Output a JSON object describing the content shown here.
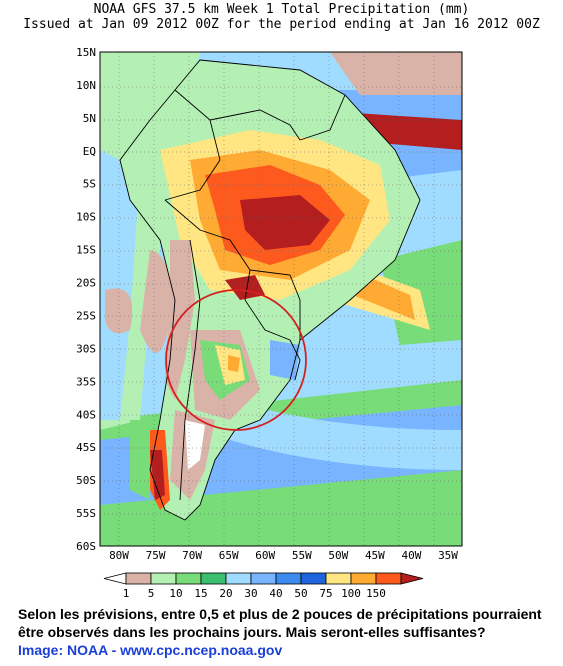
{
  "title": {
    "line1": "NOAA GFS 37.5 km Week 1 Total Precipitation (mm)",
    "line2": "Issued at Jan 09 2012 00Z for the period ending at Jan 16 2012 00Z"
  },
  "map": {
    "lat_labels": [
      "15N",
      "10N",
      "5N",
      "EQ",
      "5S",
      "10S",
      "15S",
      "20S",
      "25S",
      "30S",
      "35S",
      "40S",
      "45S",
      "50S",
      "55S",
      "60S"
    ],
    "lon_labels": [
      "80W",
      "75W",
      "70W",
      "65W",
      "60W",
      "55W",
      "50W",
      "45W",
      "40W",
      "35W"
    ],
    "highlight": "red circle over central Argentina / Uruguay region"
  },
  "legend": {
    "labels": [
      "1",
      "5",
      "10",
      "15",
      "20",
      "30",
      "40",
      "50",
      "75",
      "100",
      "150"
    ],
    "colors": [
      "#ffffff",
      "#d9b3a8",
      "#b4f0b4",
      "#78dc78",
      "#3cbe6e",
      "#a0dcff",
      "#78b4ff",
      "#3c8cf0",
      "#1e64dc",
      "#ffe682",
      "#ffaa32",
      "#ff5a1e",
      "#b41e1e"
    ]
  },
  "caption": {
    "line1": "Selon les prévisions, entre 0,5 et plus de 2 pouces de précipitations pourraient",
    "line2": "être observés dans les prochains jours. Mais seront-elles suffisantes?"
  },
  "credit": "Image: NOAA - www.cpc.ncep.noaa.gov"
}
